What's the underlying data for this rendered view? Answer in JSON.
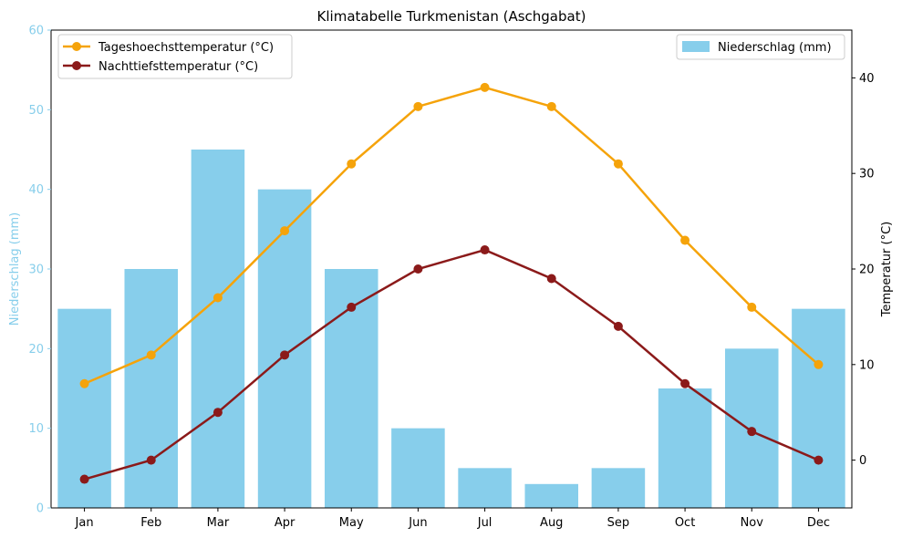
{
  "chart_data": {
    "type": "bar+line",
    "title": "Klimatabelle Turkmenistan (Aschgabat)",
    "categories": [
      "Jan",
      "Feb",
      "Mar",
      "Apr",
      "May",
      "Jun",
      "Jul",
      "Aug",
      "Sep",
      "Oct",
      "Nov",
      "Dec"
    ],
    "bar_series": {
      "name": "Niederschlag (mm)",
      "values": [
        25,
        30,
        45,
        40,
        30,
        10,
        5,
        3,
        5,
        15,
        20,
        25
      ],
      "color": "#87ceeb"
    },
    "line_series": [
      {
        "name": "Tageshoechsttemperatur (°C)",
        "values": [
          8,
          11,
          17,
          24,
          31,
          37,
          39,
          37,
          31,
          23,
          16,
          10
        ],
        "color": "#f5a30a"
      },
      {
        "name": "Nachttiefsttemperatur (°C)",
        "values": [
          -2,
          0,
          5,
          11,
          16,
          20,
          22,
          19,
          14,
          8,
          3,
          0
        ],
        "color": "#8b1a1a"
      }
    ],
    "y_left": {
      "label": "Niederschlag (mm)",
      "ylim": [
        0,
        60
      ],
      "ticks": [
        "0",
        "10",
        "20",
        "30",
        "40",
        "50",
        "60"
      ],
      "color": "#87ceeb"
    },
    "y_right": {
      "label": "Temperatur (°C)",
      "ylim": [
        -5,
        45
      ],
      "ticks": [
        "0",
        "10",
        "20",
        "30",
        "40"
      ],
      "color": "#000000"
    },
    "legends": {
      "lines_position": "upper-left",
      "bars_position": "upper-right"
    },
    "grid": false
  }
}
